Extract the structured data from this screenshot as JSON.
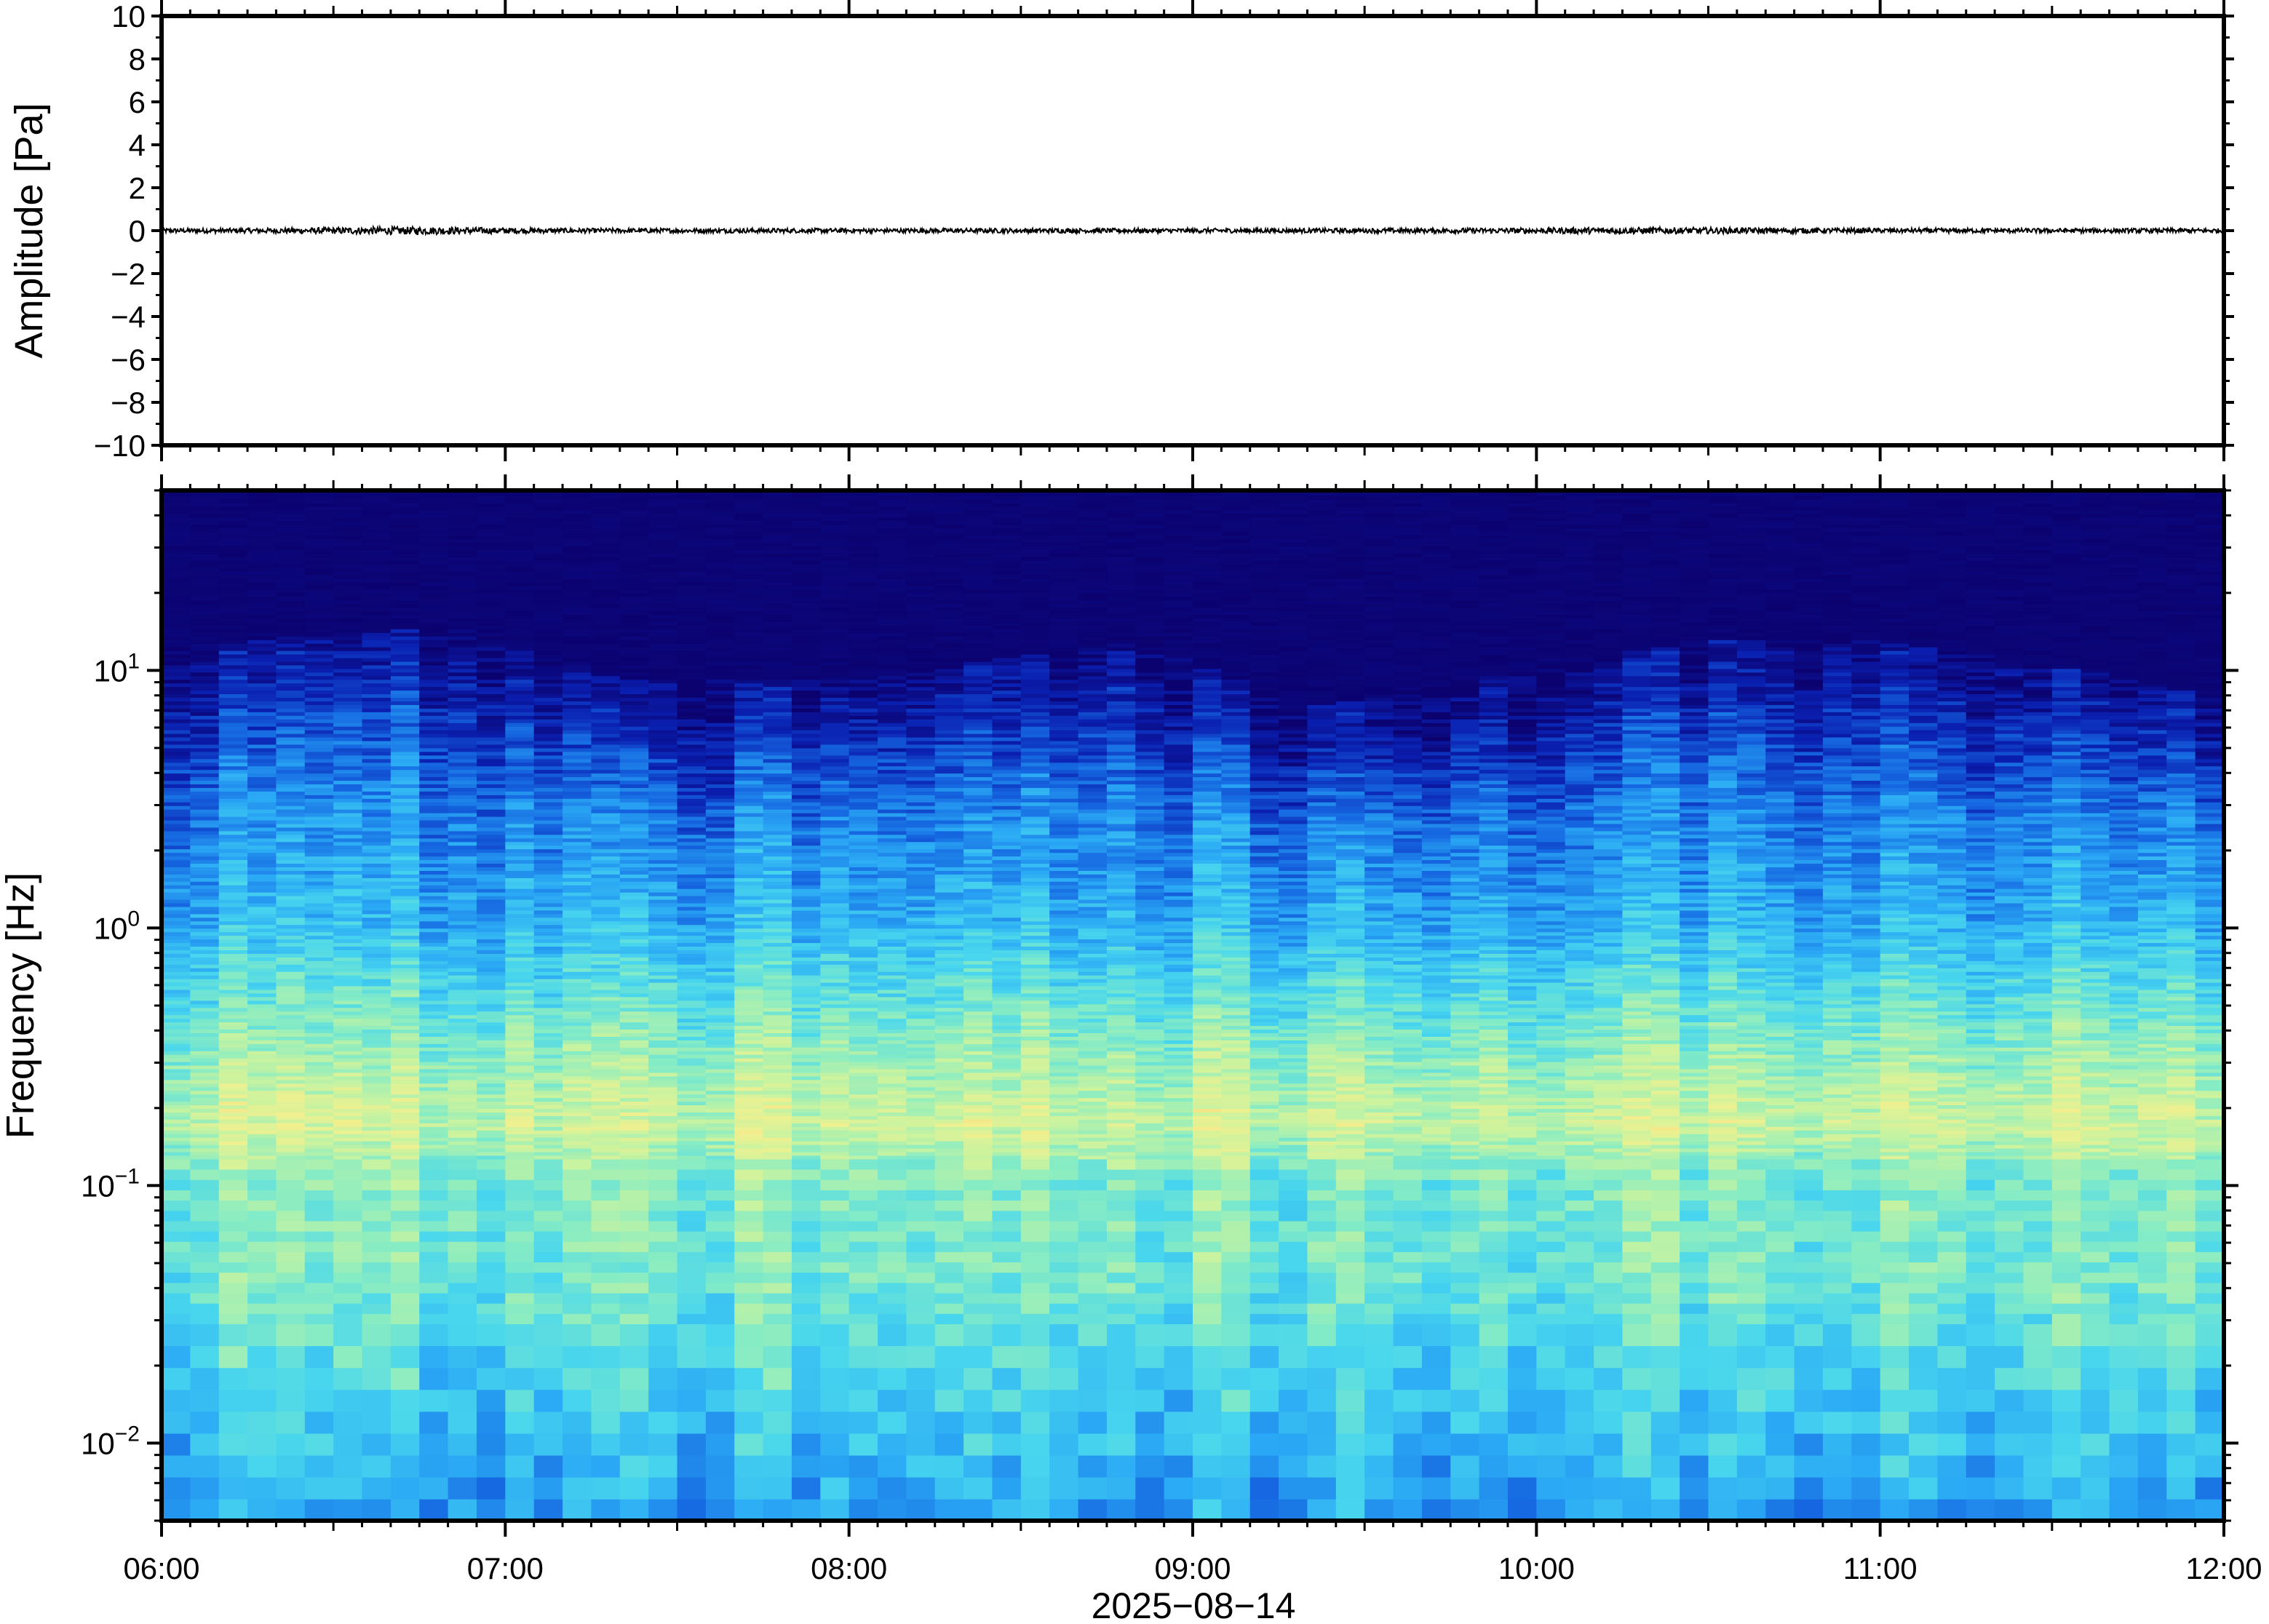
{
  "chart_data": [
    {
      "type": "line",
      "panel": "waveform",
      "ylabel": "Amplitude [Pa]",
      "ylim": [
        -10,
        10
      ],
      "yticks": [
        -10,
        -8,
        -6,
        -4,
        -2,
        0,
        2,
        4,
        6,
        8,
        10
      ],
      "ytick_labels": [
        "−10",
        "−8",
        "−6",
        "−4",
        "−2",
        "0",
        "2",
        "4",
        "6",
        "8",
        "10"
      ],
      "xlim": [
        "06:00",
        "12:00"
      ],
      "series": [
        {
          "color": "#000000",
          "baseline": 0,
          "peak_abs_amplitude": 0.3
        }
      ]
    },
    {
      "type": "heatmap",
      "panel": "spectrogram",
      "ylabel": "Frequency [Hz]",
      "yscale": "log",
      "ylim": [
        0.005,
        50
      ],
      "yticks": [
        0.01,
        0.1,
        1,
        10
      ],
      "ytick_labels": [
        {
          "base": "10",
          "exp": "−2"
        },
        {
          "base": "10",
          "exp": "−1"
        },
        {
          "base": "10",
          "exp": "0"
        },
        {
          "base": "10",
          "exp": "1"
        }
      ],
      "xlim": [
        "06:00",
        "12:00"
      ],
      "xtick_labels": [
        "06:00",
        "07:00",
        "08:00",
        "09:00",
        "10:00",
        "11:00",
        "12:00"
      ],
      "xlabel": "2025−08−14",
      "colormap": [
        "#0b0270",
        "#0a1fb0",
        "#1565e0",
        "#2aa8f5",
        "#48d6ee",
        "#86ecc4",
        "#c8f3a0",
        "#f2f08e",
        "#f8c478"
      ],
      "frequency_band_level": [
        {
          "freq": 0.005,
          "level": 0.38
        },
        {
          "freq": 0.015,
          "level": 0.5
        },
        {
          "freq": 0.04,
          "level": 0.6
        },
        {
          "freq": 0.1,
          "level": 0.62
        },
        {
          "freq": 0.17,
          "level": 0.78
        },
        {
          "freq": 0.3,
          "level": 0.68
        },
        {
          "freq": 1,
          "level": 0.42
        },
        {
          "freq": 3,
          "level": 0.3
        },
        {
          "freq": 8,
          "level": 0.12
        },
        {
          "freq": 15,
          "level": 0.0
        },
        {
          "freq": 50,
          "level": 0.0
        }
      ],
      "upper_cutoff_freq_by_hour": [
        {
          "t": "06:00",
          "freq": 12
        },
        {
          "t": "06:50",
          "freq": 15
        },
        {
          "t": "07:20",
          "freq": 9
        },
        {
          "t": "08:00",
          "freq": 9
        },
        {
          "t": "08:50",
          "freq": 13
        },
        {
          "t": "09:20",
          "freq": 7
        },
        {
          "t": "10:00",
          "freq": 10
        },
        {
          "t": "10:30",
          "freq": 13
        },
        {
          "t": "11:00",
          "freq": 13
        },
        {
          "t": "12:00",
          "freq": 8
        }
      ]
    }
  ]
}
